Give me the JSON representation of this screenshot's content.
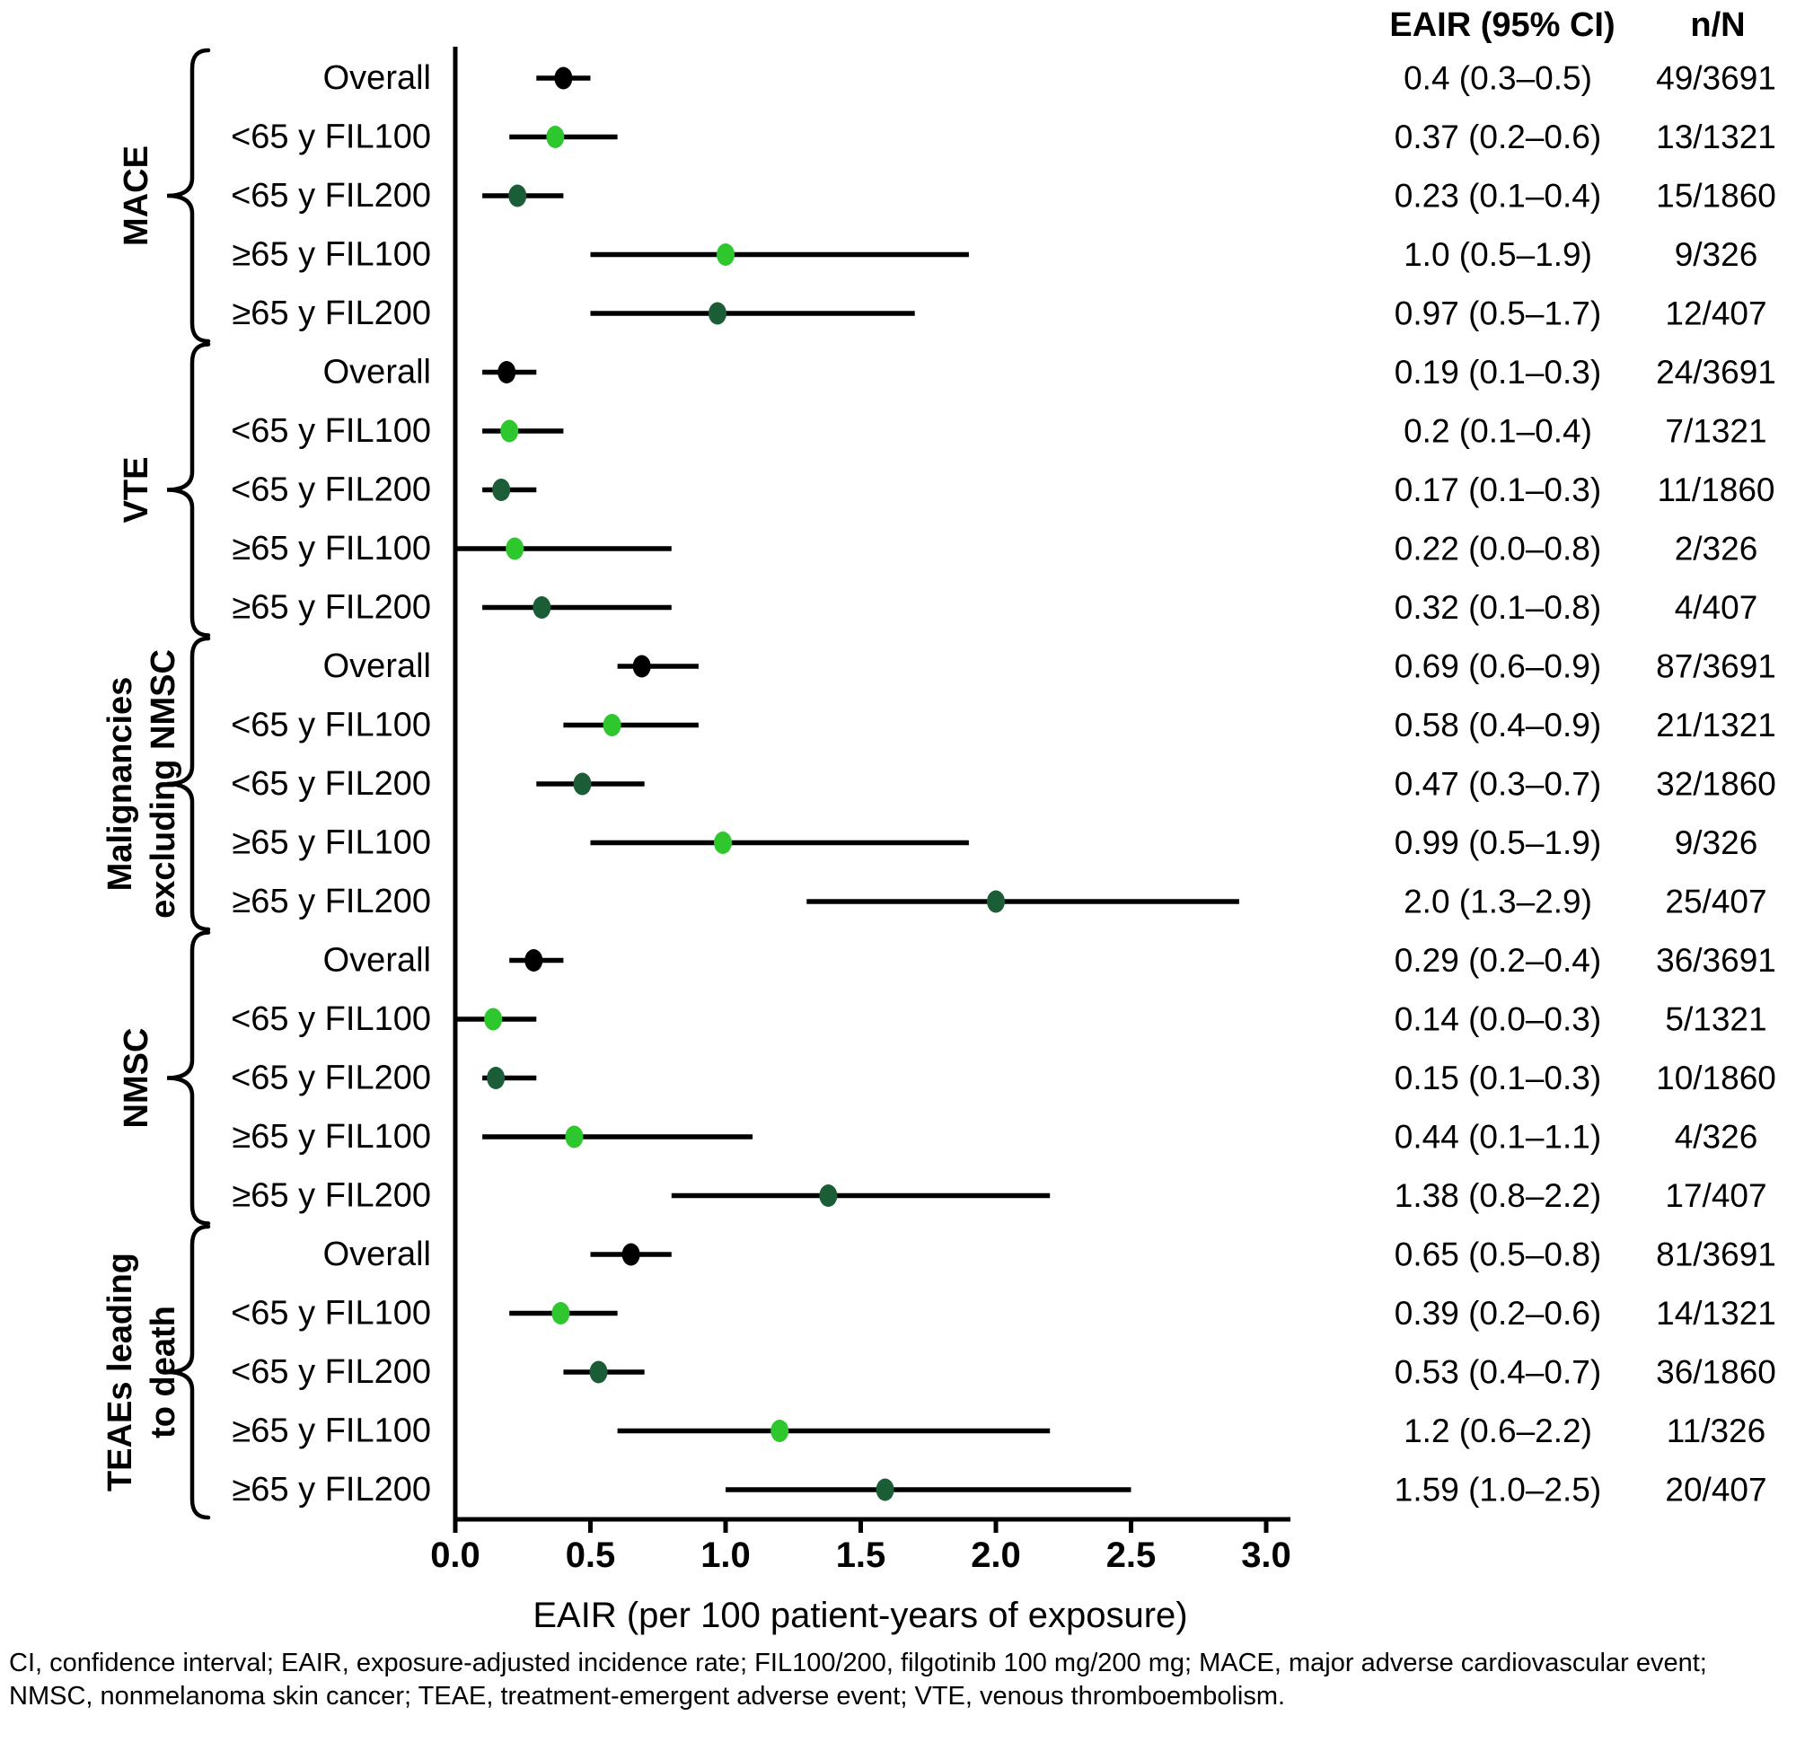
{
  "figure": {
    "columns": {
      "eair_header": "EAIR (95% CI)",
      "n_header": "n/N"
    },
    "axis": {
      "label": "EAIR (per 100 patient-years of exposure)",
      "min": 0.0,
      "max": 3.0,
      "tick_step": 0.5,
      "ticks": [
        "0.0",
        "0.5",
        "1.0",
        "1.5",
        "2.0",
        "2.5",
        "3.0"
      ]
    },
    "footnote_line1": "CI, confidence interval; EAIR, exposure-adjusted incidence rate; FIL100/200, filgotinib 100 mg/200 mg; MACE, major adverse cardiovascular event;",
    "footnote_line2": "NMSC, nonmelanoma skin cancer; TEAE, treatment-emergent adverse event; VTE, venous thromboembolism.",
    "colors": {
      "overall": "#000000",
      "fil100": "#2EC82E",
      "fil200": "#1A5D36"
    }
  },
  "chart_data": {
    "type": "scatter",
    "subtype": "forest-plot",
    "xlabel": "EAIR (per 100 patient-years of exposure)",
    "xlim": [
      0.0,
      3.0
    ],
    "x_ticks": [
      0.0,
      0.5,
      1.0,
      1.5,
      2.0,
      2.5,
      3.0
    ],
    "grid": false,
    "legend": "none",
    "value_columns": [
      "EAIR (95% CI)",
      "n/N"
    ],
    "sections": [
      {
        "label_lines": [
          "MACE"
        ],
        "rows": [
          {
            "label": "Overall",
            "group": "overall",
            "eair": 0.4,
            "ci": [
              0.3,
              0.5
            ],
            "eair_text": "0.4 (0.3–0.5)",
            "n_text": "49/3691"
          },
          {
            "label": "<65 y FIL100",
            "group": "fil100",
            "eair": 0.37,
            "ci": [
              0.2,
              0.6
            ],
            "eair_text": "0.37 (0.2–0.6)",
            "n_text": "13/1321"
          },
          {
            "label": "<65 y FIL200",
            "group": "fil200",
            "eair": 0.23,
            "ci": [
              0.1,
              0.4
            ],
            "eair_text": "0.23 (0.1–0.4)",
            "n_text": "15/1860"
          },
          {
            "label": "≥65 y FIL100",
            "group": "fil100",
            "eair": 1.0,
            "ci": [
              0.5,
              1.9
            ],
            "eair_text": "1.0 (0.5–1.9)",
            "n_text": "9/326"
          },
          {
            "label": "≥65 y FIL200",
            "group": "fil200",
            "eair": 0.97,
            "ci": [
              0.5,
              1.7
            ],
            "eair_text": "0.97 (0.5–1.7)",
            "n_text": "12/407"
          }
        ]
      },
      {
        "label_lines": [
          "VTE"
        ],
        "rows": [
          {
            "label": "Overall",
            "group": "overall",
            "eair": 0.19,
            "ci": [
              0.1,
              0.3
            ],
            "eair_text": "0.19 (0.1–0.3)",
            "n_text": "24/3691"
          },
          {
            "label": "<65 y FIL100",
            "group": "fil100",
            "eair": 0.2,
            "ci": [
              0.1,
              0.4
            ],
            "eair_text": "0.2 (0.1–0.4)",
            "n_text": "7/1321"
          },
          {
            "label": "<65 y FIL200",
            "group": "fil200",
            "eair": 0.17,
            "ci": [
              0.1,
              0.3
            ],
            "eair_text": "0.17 (0.1–0.3)",
            "n_text": "11/1860"
          },
          {
            "label": "≥65 y FIL100",
            "group": "fil100",
            "eair": 0.22,
            "ci": [
              0.0,
              0.8
            ],
            "eair_text": "0.22 (0.0–0.8)",
            "n_text": "2/326"
          },
          {
            "label": "≥65 y FIL200",
            "group": "fil200",
            "eair": 0.32,
            "ci": [
              0.1,
              0.8
            ],
            "eair_text": "0.32 (0.1–0.8)",
            "n_text": "4/407"
          }
        ]
      },
      {
        "label_lines": [
          "Malignancies",
          "excluding NMSC"
        ],
        "rows": [
          {
            "label": "Overall",
            "group": "overall",
            "eair": 0.69,
            "ci": [
              0.6,
              0.9
            ],
            "eair_text": "0.69 (0.6–0.9)",
            "n_text": "87/3691"
          },
          {
            "label": "<65 y FIL100",
            "group": "fil100",
            "eair": 0.58,
            "ci": [
              0.4,
              0.9
            ],
            "eair_text": "0.58 (0.4–0.9)",
            "n_text": "21/1321"
          },
          {
            "label": "<65 y FIL200",
            "group": "fil200",
            "eair": 0.47,
            "ci": [
              0.3,
              0.7
            ],
            "eair_text": "0.47 (0.3–0.7)",
            "n_text": "32/1860"
          },
          {
            "label": "≥65 y FIL100",
            "group": "fil100",
            "eair": 0.99,
            "ci": [
              0.5,
              1.9
            ],
            "eair_text": "0.99 (0.5–1.9)",
            "n_text": "9/326"
          },
          {
            "label": "≥65 y FIL200",
            "group": "fil200",
            "eair": 2.0,
            "ci": [
              1.3,
              2.9
            ],
            "eair_text": "2.0 (1.3–2.9)",
            "n_text": "25/407"
          }
        ]
      },
      {
        "label_lines": [
          "NMSC"
        ],
        "rows": [
          {
            "label": "Overall",
            "group": "overall",
            "eair": 0.29,
            "ci": [
              0.2,
              0.4
            ],
            "eair_text": "0.29 (0.2–0.4)",
            "n_text": "36/3691"
          },
          {
            "label": "<65 y FIL100",
            "group": "fil100",
            "eair": 0.14,
            "ci": [
              0.0,
              0.3
            ],
            "eair_text": "0.14 (0.0–0.3)",
            "n_text": "5/1321"
          },
          {
            "label": "<65 y FIL200",
            "group": "fil200",
            "eair": 0.15,
            "ci": [
              0.1,
              0.3
            ],
            "eair_text": "0.15 (0.1–0.3)",
            "n_text": "10/1860"
          },
          {
            "label": "≥65 y FIL100",
            "group": "fil100",
            "eair": 0.44,
            "ci": [
              0.1,
              1.1
            ],
            "eair_text": "0.44 (0.1–1.1)",
            "n_text": "4/326"
          },
          {
            "label": "≥65 y FIL200",
            "group": "fil200",
            "eair": 1.38,
            "ci": [
              0.8,
              2.2
            ],
            "eair_text": "1.38 (0.8–2.2)",
            "n_text": "17/407"
          }
        ]
      },
      {
        "label_lines": [
          "TEAEs leading",
          "to death"
        ],
        "rows": [
          {
            "label": "Overall",
            "group": "overall",
            "eair": 0.65,
            "ci": [
              0.5,
              0.8
            ],
            "eair_text": "0.65 (0.5–0.8)",
            "n_text": "81/3691"
          },
          {
            "label": "<65 y FIL100",
            "group": "fil100",
            "eair": 0.39,
            "ci": [
              0.2,
              0.6
            ],
            "eair_text": "0.39 (0.2–0.6)",
            "n_text": "14/1321"
          },
          {
            "label": "<65 y FIL200",
            "group": "fil200",
            "eair": 0.53,
            "ci": [
              0.4,
              0.7
            ],
            "eair_text": "0.53 (0.4–0.7)",
            "n_text": "36/1860"
          },
          {
            "label": "≥65 y FIL100",
            "group": "fil100",
            "eair": 1.2,
            "ci": [
              0.6,
              2.2
            ],
            "eair_text": "1.2 (0.6–2.2)",
            "n_text": "11/326"
          },
          {
            "label": "≥65 y FIL200",
            "group": "fil200",
            "eair": 1.59,
            "ci": [
              1.0,
              2.5
            ],
            "eair_text": "1.59 (1.0–2.5)",
            "n_text": "20/407"
          }
        ]
      }
    ]
  }
}
